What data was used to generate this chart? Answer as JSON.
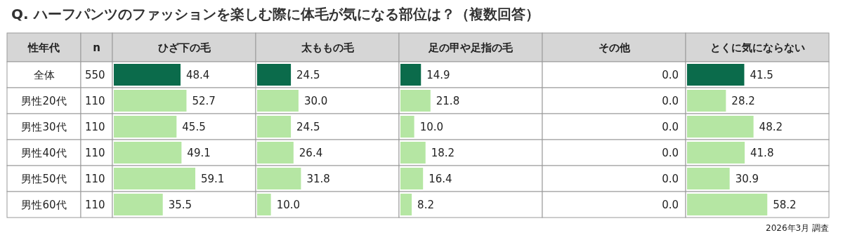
{
  "chart_data": [
    {
      "type": "other",
      "title": "Q. ハーフパンツのファッションを楽しむ際に体毛が気になる部位は？（複数回答）",
      "annotations": [
        "2026年3月 調査"
      ]
    },
    {
      "type": "other",
      "title": "n",
      "ylabel": "性年代",
      "categories": [
        "全体",
        "男性20代",
        "男性30代",
        "男性40代",
        "男性50代",
        "男性60代"
      ],
      "values": [
        550,
        110,
        110,
        110,
        110,
        110
      ],
      "data_labels": true
    },
    {
      "type": "bar",
      "orientation": "horizontal",
      "title": "ひざ下の毛",
      "categories": [
        null,
        null,
        null,
        null,
        null,
        null
      ],
      "values": [
        48.4,
        52.7,
        45.5,
        49.1,
        59.1,
        35.5
      ],
      "value_labels": [
        "48.4",
        "52.7",
        "45.5",
        "49.1",
        "59.1",
        "35.5"
      ],
      "colors": [
        "#0b6b4b",
        "#b5e6a3",
        "#b5e6a3",
        "#b5e6a3",
        "#b5e6a3",
        "#b5e6a3"
      ]
    },
    {
      "type": "bar",
      "orientation": "horizontal",
      "title": "太ももの毛",
      "categories": [
        null,
        null,
        null,
        null,
        null,
        null
      ],
      "values": [
        24.5,
        30.0,
        24.5,
        26.4,
        31.8,
        10.0
      ],
      "value_labels": [
        "24.5",
        "30.0",
        "24.5",
        "26.4",
        "31.8",
        "10.0"
      ],
      "colors": [
        "#0b6b4b",
        "#b5e6a3",
        "#b5e6a3",
        "#b5e6a3",
        "#b5e6a3",
        "#b5e6a3"
      ]
    },
    {
      "type": "bar",
      "orientation": "horizontal",
      "title": "足の甲や足指の毛",
      "categories": [
        null,
        null,
        null,
        null,
        null,
        null
      ],
      "values": [
        14.9,
        21.8,
        10.0,
        18.2,
        16.4,
        8.2
      ],
      "value_labels": [
        "14.9",
        "21.8",
        "10.0",
        "18.2",
        "16.4",
        "8.2"
      ],
      "colors": [
        "#0b6b4b",
        "#b5e6a3",
        "#b5e6a3",
        "#b5e6a3",
        "#b5e6a3",
        "#b5e6a3"
      ]
    },
    {
      "type": "other",
      "title": "その他",
      "value_labels": [
        "0.0",
        "0.0",
        "0.0",
        "0.0",
        "0.0",
        "0.0"
      ]
    },
    {
      "type": "bar",
      "orientation": "horizontal",
      "title": "とくに気にならない",
      "categories": [
        null,
        null,
        null,
        null,
        null,
        null
      ],
      "values": [
        41.5,
        28.2,
        48.2,
        41.8,
        30.9,
        58.2
      ],
      "value_labels": [
        "41.5",
        "28.2",
        "48.2",
        "41.8",
        "30.9",
        "58.2"
      ],
      "colors": [
        "#0b6b4b",
        "#b5e6a3",
        "#b5e6a3",
        "#b5e6a3",
        "#b5e6a3",
        "#b5e6a3"
      ]
    }
  ]
}
